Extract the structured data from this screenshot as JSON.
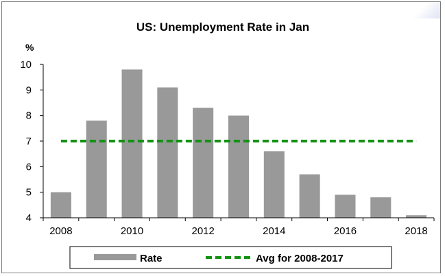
{
  "chart_data": {
    "type": "bar",
    "title": "US: Unemployment Rate in Jan",
    "ylabel": "%",
    "xlabel": "",
    "ylim": [
      4,
      10
    ],
    "yticks": [
      4,
      5,
      6,
      7,
      8,
      9,
      10
    ],
    "categories": [
      "2008",
      "2009",
      "2010",
      "2011",
      "2012",
      "2013",
      "2014",
      "2015",
      "2016",
      "2017",
      "2018"
    ],
    "x_tick_labels": [
      "2008",
      "2010",
      "2012",
      "2014",
      "2016",
      "2018"
    ],
    "series": [
      {
        "name": "Rate",
        "type": "bar",
        "color": "#999999",
        "values": [
          5.0,
          7.8,
          9.8,
          9.1,
          8.3,
          8.0,
          6.6,
          5.7,
          4.9,
          4.8,
          4.1
        ]
      },
      {
        "name": "Avg for 2008-2017",
        "type": "line",
        "style": "dashed",
        "color": "#139113",
        "value": 7.0,
        "x_range": [
          "2008",
          "2018"
        ]
      }
    ],
    "grid": false,
    "legend_position": "bottom"
  }
}
